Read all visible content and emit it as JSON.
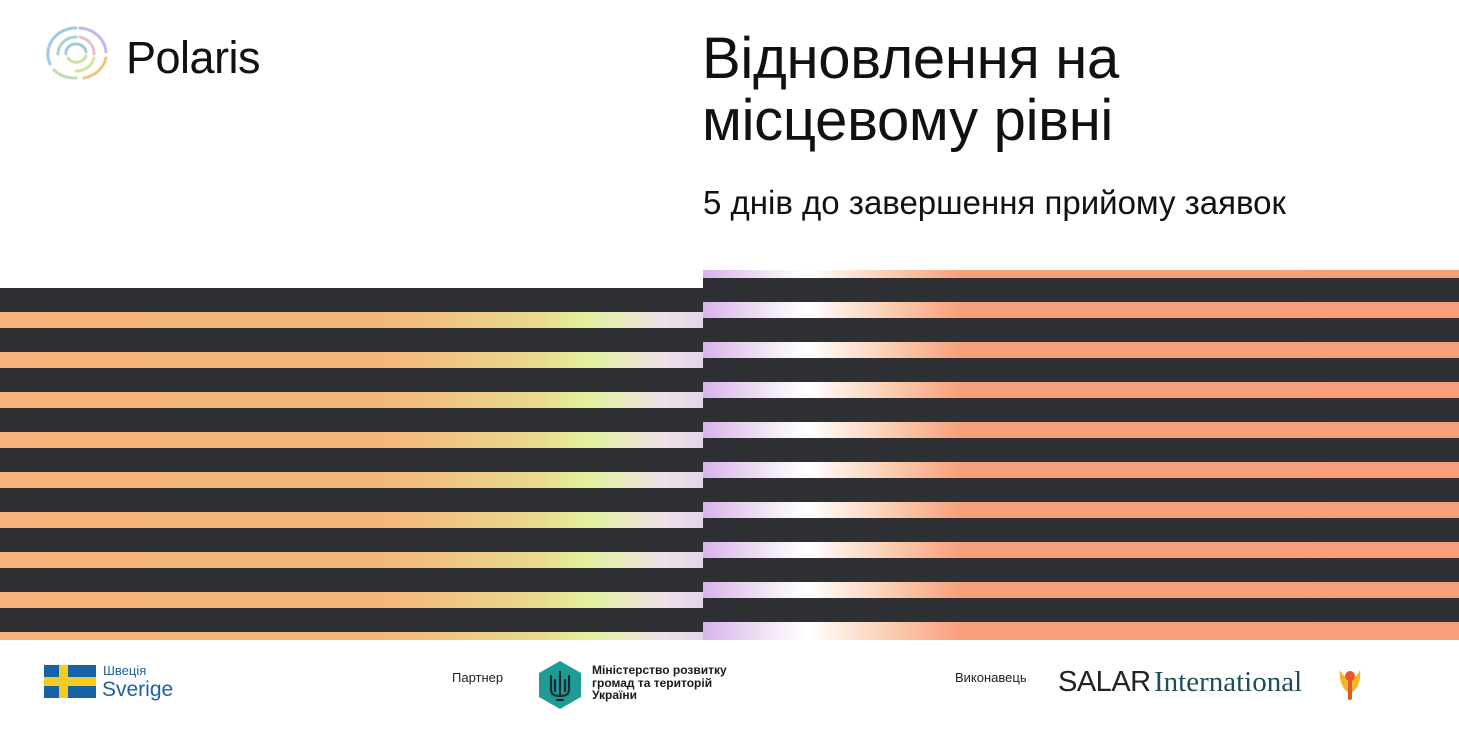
{
  "brand": {
    "name": "Polaris",
    "logo_icon": "polaris-rings-icon"
  },
  "heading": {
    "line1": "Відновлення на",
    "line2": "місцевому рівні",
    "sub": "5 днів до завершення прийому заявок"
  },
  "colors": {
    "stripe_dark": "#2e3034",
    "left_orange": "#f4b37a",
    "left_green": "#e3f0a0",
    "right_purple": "#d7b3ea",
    "right_orange": "#f89e7b"
  },
  "footer": {
    "sweden": {
      "ua": "Швеція",
      "en": "Sverige",
      "flag_icon": "sweden-flag-icon"
    },
    "partner": {
      "label": "Партнер",
      "ministry_lines": [
        "Міністерство розвитку",
        "громад та територій",
        "України"
      ],
      "emblem_icon": "trident-emblem-icon"
    },
    "executor": {
      "label": "Виконавець",
      "org_word": "SALAR",
      "org_suffix": "International",
      "org_icon": "salar-figure-icon"
    }
  }
}
